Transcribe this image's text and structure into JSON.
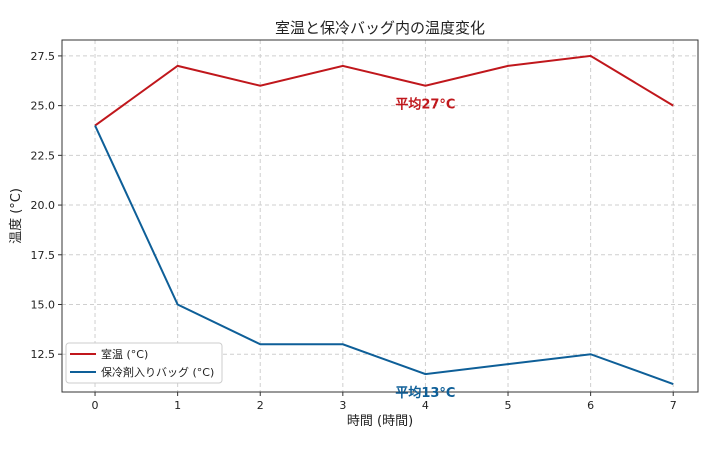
{
  "chart_data": {
    "type": "line",
    "title": "室温と保冷バッグ内の温度変化",
    "xlabel": "時間 (時間)",
    "ylabel": "温度 (°C)",
    "x": [
      0,
      1,
      2,
      3,
      4,
      5,
      6,
      7
    ],
    "xticks": [
      "0",
      "1",
      "2",
      "3",
      "4",
      "5",
      "6",
      "7"
    ],
    "yticks": [
      "12.5",
      "15.0",
      "17.5",
      "20.0",
      "22.5",
      "25.0",
      "27.5"
    ],
    "xlim": [
      -0.4,
      7.3
    ],
    "ylim": [
      10.6,
      28.3
    ],
    "grid": true,
    "legend_position": "lower-left",
    "series": [
      {
        "name": "室温 (°C)",
        "color": "#c0171c",
        "values": [
          24,
          27,
          26,
          27,
          26,
          27,
          27.5,
          25
        ]
      },
      {
        "name": "保冷剤入りバッグ (°C)",
        "color": "#0e5f98",
        "values": [
          24,
          15,
          13,
          13,
          11.5,
          12,
          12.5,
          11
        ]
      }
    ],
    "annotations": [
      {
        "text": "平均27°C",
        "x": 4,
        "y": 25.1,
        "color": "#c0171c"
      },
      {
        "text": "平均13°C",
        "x": 4,
        "y": 10.6,
        "color": "#0e5f98"
      }
    ]
  }
}
